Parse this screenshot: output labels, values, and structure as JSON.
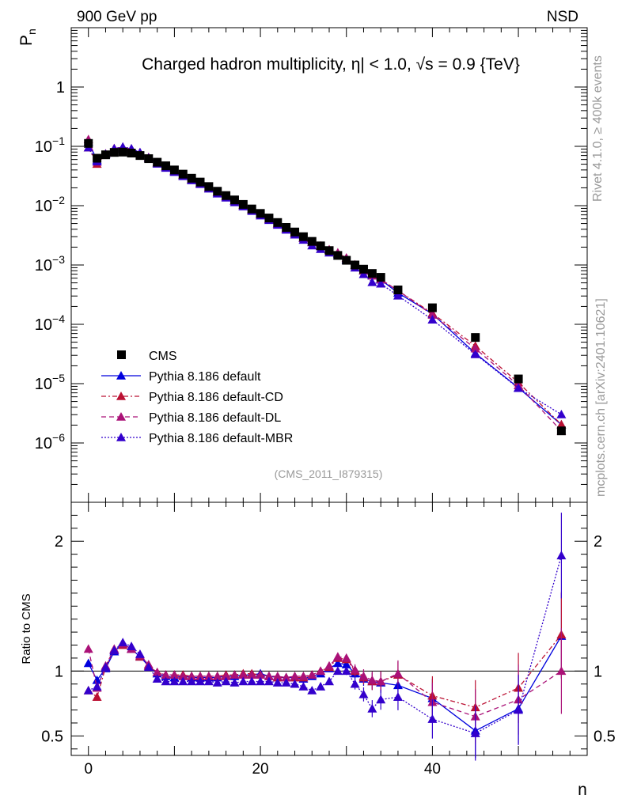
{
  "header": {
    "left": "900 GeV pp",
    "right": "NSD"
  },
  "side": {
    "rivet": "Rivet 4.1.0, ≥ 400k events",
    "mcplots": "mcplots.cern.ch [arXiv:2401.10621]"
  },
  "chart_data": {
    "type": "scatter",
    "title": "Charged hadron multiplicity, η| < 1.0, √s = 0.9 {TeV}",
    "ylabel_main": "P",
    "ylabel_main_sub": "n",
    "ylabel_ratio": "Ratio to CMS",
    "xlabel": "n",
    "analysis_id": "(CMS_2011_I879315)",
    "xlim": [
      -2,
      58
    ],
    "ylim_main": [
      1e-07,
      10
    ],
    "ylim_ratio": [
      0.35,
      2.3
    ],
    "yscale_main": "log",
    "x_ticks": [
      0,
      20,
      40
    ],
    "main_ticks": [
      {
        "label": "1",
        "value": 1
      },
      {
        "label": "10",
        "exp": "−1",
        "value": 0.1
      },
      {
        "label": "10",
        "exp": "−2",
        "value": 0.01
      },
      {
        "label": "10",
        "exp": "−3",
        "value": 0.001
      },
      {
        "label": "10",
        "exp": "−4",
        "value": 0.0001
      },
      {
        "label": "10",
        "exp": "−5",
        "value": 1e-05
      },
      {
        "label": "10",
        "exp": "−6",
        "value": 1e-06
      }
    ],
    "ratio_ticks": [
      {
        "label": "0.5",
        "value": 0.5
      },
      {
        "label": "1",
        "value": 1
      },
      {
        "label": "2",
        "value": 2
      }
    ],
    "legend_position": "lower-left",
    "x": [
      0,
      1,
      2,
      3,
      4,
      5,
      6,
      7,
      8,
      9,
      10,
      11,
      12,
      13,
      14,
      15,
      16,
      17,
      18,
      19,
      20,
      21,
      22,
      23,
      24,
      25,
      26,
      27,
      28,
      29,
      30,
      31,
      32,
      33,
      34,
      36,
      40,
      45,
      50,
      55
    ],
    "data": {
      "name": "CMS",
      "values": [
        0.112,
        0.063,
        0.072,
        0.079,
        0.08,
        0.077,
        0.07,
        0.062,
        0.054,
        0.047,
        0.04,
        0.034,
        0.029,
        0.025,
        0.021,
        0.0175,
        0.0148,
        0.0125,
        0.0105,
        0.0088,
        0.0074,
        0.0062,
        0.0052,
        0.0043,
        0.0036,
        0.003,
        0.0025,
        0.0021,
        0.00175,
        0.00145,
        0.0012,
        0.001,
        0.00085,
        0.00072,
        0.00062,
        0.00038,
        0.00019,
        6e-05,
        1.2e-05,
        1.6e-06
      ]
    },
    "series": [
      {
        "name": "Pythia 8.186 default",
        "color": "#0000dd",
        "dash": "",
        "ratio": [
          1.06,
          0.93,
          1.02,
          1.15,
          1.21,
          1.17,
          1.11,
          1.04,
          0.98,
          0.96,
          0.95,
          0.96,
          0.95,
          0.95,
          0.95,
          0.95,
          0.96,
          0.96,
          0.97,
          0.97,
          0.98,
          0.96,
          0.95,
          0.95,
          0.95,
          0.94,
          0.96,
          0.98,
          1.02,
          1.06,
          1.05,
          0.98,
          0.94,
          0.92,
          0.91,
          0.89,
          0.79,
          0.54,
          0.71,
          1.27
        ]
      },
      {
        "name": "Pythia 8.186 default-CD",
        "color": "#bb1133",
        "dash": "6,3,2,3",
        "ratio": [
          0.85,
          0.8,
          1.03,
          1.16,
          1.2,
          1.17,
          1.11,
          1.04,
          0.99,
          0.97,
          0.97,
          0.97,
          0.96,
          0.96,
          0.96,
          0.96,
          0.97,
          0.97,
          0.98,
          0.98,
          0.97,
          0.96,
          0.95,
          0.95,
          0.95,
          0.95,
          0.97,
          1.0,
          1.03,
          1.1,
          1.09,
          1.0,
          0.95,
          0.92,
          0.92,
          0.97,
          0.81,
          0.72,
          0.87,
          1.28
        ]
      },
      {
        "name": "Pythia 8.186 default-DL",
        "color": "#aa1177",
        "dash": "6,4",
        "ratio": [
          1.17,
          0.87,
          1.04,
          1.17,
          1.21,
          1.17,
          1.12,
          1.05,
          0.99,
          0.97,
          0.97,
          0.96,
          0.96,
          0.96,
          0.96,
          0.96,
          0.96,
          0.97,
          0.97,
          0.97,
          0.97,
          0.96,
          0.96,
          0.95,
          0.96,
          0.96,
          0.97,
          1.0,
          1.04,
          1.11,
          1.1,
          1.01,
          0.96,
          0.93,
          0.92,
          0.98,
          0.76,
          0.65,
          0.78,
          1.0
        ]
      },
      {
        "name": "Pythia 8.186 default-MBR",
        "color": "#3300cc",
        "dash": "2,2",
        "ratio": [
          0.85,
          0.88,
          1.03,
          1.16,
          1.22,
          1.19,
          1.13,
          1.03,
          0.94,
          0.92,
          0.92,
          0.92,
          0.92,
          0.92,
          0.92,
          0.91,
          0.92,
          0.91,
          0.92,
          0.92,
          0.92,
          0.92,
          0.91,
          0.91,
          0.9,
          0.88,
          0.85,
          0.88,
          0.92,
          1.0,
          1.0,
          0.9,
          0.82,
          0.71,
          0.78,
          0.8,
          0.63,
          0.52,
          0.7,
          1.89
        ]
      }
    ]
  }
}
